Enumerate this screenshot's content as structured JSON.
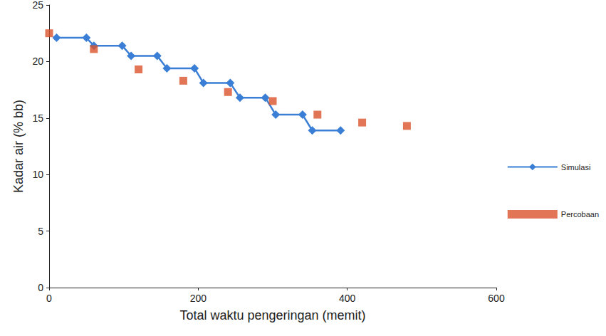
{
  "chart_data": {
    "type": "line",
    "x_label": "Total waktu pengeringan (memit)",
    "y_label": "Kadar air (% bb)",
    "xlim": [
      0,
      600
    ],
    "xticks": [
      0,
      200,
      400,
      600
    ],
    "ylim": [
      0,
      25
    ],
    "yticks": [
      0,
      5,
      10,
      15,
      20,
      25
    ],
    "grid": false,
    "legend": "right",
    "series": [
      {
        "name": "Simulasi",
        "type": "line",
        "color": "#3a7fd5",
        "marker": "diamond",
        "line_style": "solid",
        "x": [
          10,
          50,
          60,
          98,
          110,
          145,
          158,
          195,
          207,
          243,
          256,
          290,
          304,
          340,
          353,
          391
        ],
        "values": [
          22.1,
          22.1,
          21.4,
          21.4,
          20.5,
          20.5,
          19.4,
          19.4,
          18.1,
          18.1,
          16.8,
          16.8,
          15.3,
          15.3,
          13.9,
          13.9
        ]
      },
      {
        "name": "Percobaan",
        "type": "scatter",
        "color": "#d9532b",
        "marker": "square",
        "x": [
          0,
          60,
          120,
          180,
          240,
          300,
          360,
          420,
          480
        ],
        "values": [
          22.5,
          21.1,
          19.3,
          18.3,
          17.3,
          16.5,
          15.3,
          14.6,
          14.3
        ]
      }
    ]
  }
}
